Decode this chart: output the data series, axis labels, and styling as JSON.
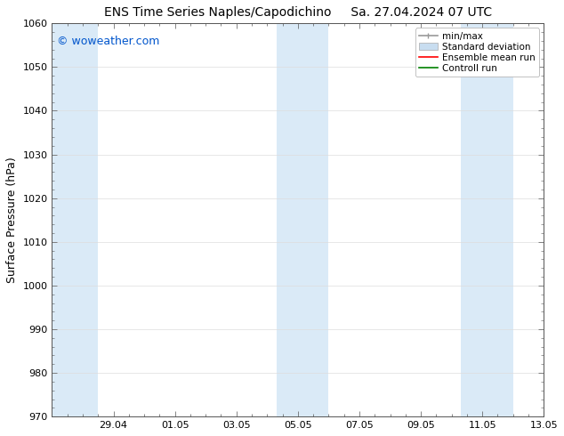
{
  "title_left": "ENS Time Series Naples/Capodichino",
  "title_right": "Sa. 27.04.2024 07 UTC",
  "ylabel": "Surface Pressure (hPa)",
  "ylim": [
    970,
    1060
  ],
  "yticks": [
    970,
    980,
    990,
    1000,
    1010,
    1020,
    1030,
    1040,
    1050,
    1060
  ],
  "x_start_num": 0,
  "x_end_num": 16,
  "xtick_labels": [
    "29.04",
    "01.05",
    "03.05",
    "05.05",
    "07.05",
    "09.05",
    "11.05",
    "13.05"
  ],
  "xtick_positions": [
    2,
    4,
    6,
    8,
    10,
    12,
    14,
    16
  ],
  "shaded_bands": [
    {
      "xmin": 0.0,
      "xmax": 1.5,
      "color": "#daeaf7"
    },
    {
      "xmin": 7.3,
      "xmax": 9.0,
      "color": "#daeaf7"
    },
    {
      "xmin": 13.3,
      "xmax": 15.0,
      "color": "#daeaf7"
    }
  ],
  "watermark": "© woweather.com",
  "watermark_color": "#0055cc",
  "legend_items": [
    {
      "label": "min/max",
      "color": "#999999",
      "type": "errorbar"
    },
    {
      "label": "Standard deviation",
      "color": "#c8ddf0",
      "type": "patch"
    },
    {
      "label": "Ensemble mean run",
      "color": "#ff0000",
      "type": "line"
    },
    {
      "label": "Controll run",
      "color": "#008000",
      "type": "line"
    }
  ],
  "bg_color": "#ffffff",
  "plot_bg_color": "#ffffff",
  "grid_color": "#dddddd",
  "title_fontsize": 10,
  "tick_fontsize": 8,
  "ylabel_fontsize": 9,
  "watermark_fontsize": 9
}
